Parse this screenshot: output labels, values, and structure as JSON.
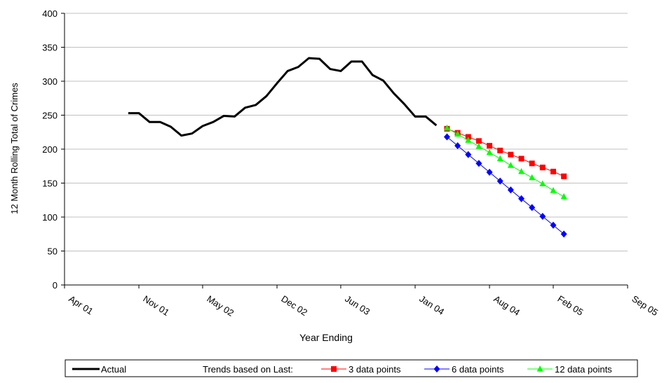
{
  "chart_data": {
    "type": "line",
    "title": "",
    "xlabel": "Year Ending",
    "ylabel": "12 Month Rolling Total of Crimes",
    "ylim": [
      0,
      400
    ],
    "yticks": [
      0,
      50,
      100,
      150,
      200,
      250,
      300,
      350,
      400
    ],
    "xlim": [
      "2001-04",
      "2005-09"
    ],
    "xticks": [
      {
        "date": "2001-04",
        "label": "Apr 01"
      },
      {
        "date": "2001-11",
        "label": "Nov 01"
      },
      {
        "date": "2002-05",
        "label": "May 02"
      },
      {
        "date": "2002-12",
        "label": "Dec 02"
      },
      {
        "date": "2003-06",
        "label": "Jun 03"
      },
      {
        "date": "2004-01",
        "label": "Jan 04"
      },
      {
        "date": "2004-08",
        "label": "Aug 04"
      },
      {
        "date": "2005-02",
        "label": "Feb 05"
      },
      {
        "date": "2005-09",
        "label": "Sep 05"
      }
    ],
    "grid": "horizontal",
    "legend": {
      "position": "bottom",
      "trend_prefix": "Trends based on Last:"
    },
    "series": [
      {
        "name": "Actual",
        "color": "#000000",
        "marker": "none",
        "points": [
          [
            "2001-10",
            253
          ],
          [
            "2001-11",
            253
          ],
          [
            "2001-12",
            240
          ],
          [
            "2002-01",
            240
          ],
          [
            "2002-02",
            233
          ],
          [
            "2002-03",
            220
          ],
          [
            "2002-04",
            223
          ],
          [
            "2002-05",
            234
          ],
          [
            "2002-06",
            240
          ],
          [
            "2002-07",
            249
          ],
          [
            "2002-08",
            248
          ],
          [
            "2002-09",
            261
          ],
          [
            "2002-10",
            265
          ],
          [
            "2002-11",
            278
          ],
          [
            "2002-12",
            297
          ],
          [
            "2003-01",
            315
          ],
          [
            "2003-02",
            321
          ],
          [
            "2003-03",
            334
          ],
          [
            "2003-04",
            333
          ],
          [
            "2003-05",
            318
          ],
          [
            "2003-06",
            315
          ],
          [
            "2003-07",
            329
          ],
          [
            "2003-08",
            329
          ],
          [
            "2003-09",
            309
          ],
          [
            "2003-10",
            301
          ],
          [
            "2003-11",
            282
          ],
          [
            "2003-12",
            266
          ],
          [
            "2004-01",
            248
          ],
          [
            "2004-02",
            248
          ],
          [
            "2004-03",
            235
          ]
        ]
      },
      {
        "name": "3 data points",
        "color": "#ff0000",
        "marker": "square",
        "points": [
          [
            "2004-04",
            230
          ],
          [
            "2004-05",
            224
          ],
          [
            "2004-06",
            218
          ],
          [
            "2004-07",
            212
          ],
          [
            "2004-08",
            205
          ],
          [
            "2004-09",
            198
          ],
          [
            "2004-10",
            192
          ],
          [
            "2004-11",
            186
          ],
          [
            "2004-12",
            179
          ],
          [
            "2005-01",
            173
          ],
          [
            "2005-02",
            167
          ],
          [
            "2005-03",
            160
          ]
        ]
      },
      {
        "name": "6 data points",
        "color": "#0000ff",
        "marker": "diamond",
        "points": [
          [
            "2004-04",
            218
          ],
          [
            "2004-05",
            205
          ],
          [
            "2004-06",
            192
          ],
          [
            "2004-07",
            179
          ],
          [
            "2004-08",
            166
          ],
          [
            "2004-09",
            153
          ],
          [
            "2004-10",
            140
          ],
          [
            "2004-11",
            127
          ],
          [
            "2004-12",
            114
          ],
          [
            "2005-01",
            101
          ],
          [
            "2005-02",
            88
          ],
          [
            "2005-03",
            75
          ]
        ]
      },
      {
        "name": "12 data points",
        "color": "#00ff00",
        "marker": "triangle",
        "points": [
          [
            "2004-04",
            231
          ],
          [
            "2004-05",
            222
          ],
          [
            "2004-06",
            213
          ],
          [
            "2004-07",
            204
          ],
          [
            "2004-08",
            195
          ],
          [
            "2004-09",
            186
          ],
          [
            "2004-10",
            176
          ],
          [
            "2004-11",
            167
          ],
          [
            "2004-12",
            158
          ],
          [
            "2005-01",
            149
          ],
          [
            "2005-02",
            139
          ],
          [
            "2005-03",
            130
          ]
        ]
      }
    ]
  }
}
